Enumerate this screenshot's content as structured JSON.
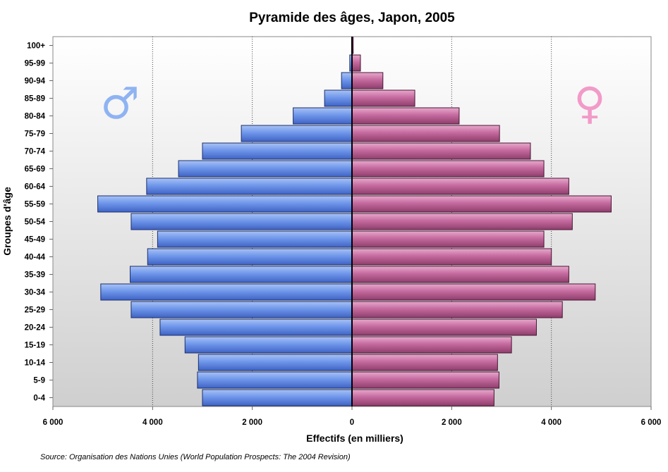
{
  "chart_data": {
    "type": "bar",
    "orientation": "horizontal",
    "title": "Pyramide des âges, Japon, 2005",
    "xlabel": "Effectifs (en milliers)",
    "ylabel": "Groupes d'âge",
    "xlim": [
      -6000,
      6000
    ],
    "xticks": [
      "6 000",
      "4 000",
      "2 000",
      "0",
      "2 000",
      "4 000",
      "6 000"
    ],
    "grid": "vertical-dotted",
    "categories": [
      "0-4",
      "5-9",
      "10-14",
      "15-19",
      "20-24",
      "25-29",
      "30-34",
      "35-39",
      "40-44",
      "45-49",
      "50-54",
      "55-59",
      "60-64",
      "65-69",
      "70-74",
      "75-79",
      "80-84",
      "85-89",
      "90-94",
      "95-99",
      "100+"
    ],
    "series": [
      {
        "symbol": "♂",
        "color": "#6f97ea",
        "side": "left",
        "values": [
          3000,
          3100,
          3080,
          3350,
          3850,
          4430,
          5040,
          4450,
          4100,
          3900,
          4430,
          5100,
          4120,
          3480,
          3000,
          2220,
          1180,
          550,
          210,
          45,
          8
        ]
      },
      {
        "symbol": "♀",
        "color": "#c56a9f",
        "side": "right",
        "values": [
          2850,
          2950,
          2920,
          3200,
          3700,
          4220,
          4880,
          4350,
          4000,
          3850,
          4420,
          5200,
          4350,
          3850,
          3580,
          2960,
          2150,
          1260,
          620,
          170,
          25
        ]
      }
    ],
    "source": "Source: Organisation des Nations Unies (World Population Prospects: The 2004 Revision)"
  },
  "colors": {
    "male_symbol": "#8fb3f2",
    "female_symbol": "#f29ac8",
    "plot_bg_top": "#ffffff",
    "plot_bg_bottom": "#cfcfcf"
  }
}
